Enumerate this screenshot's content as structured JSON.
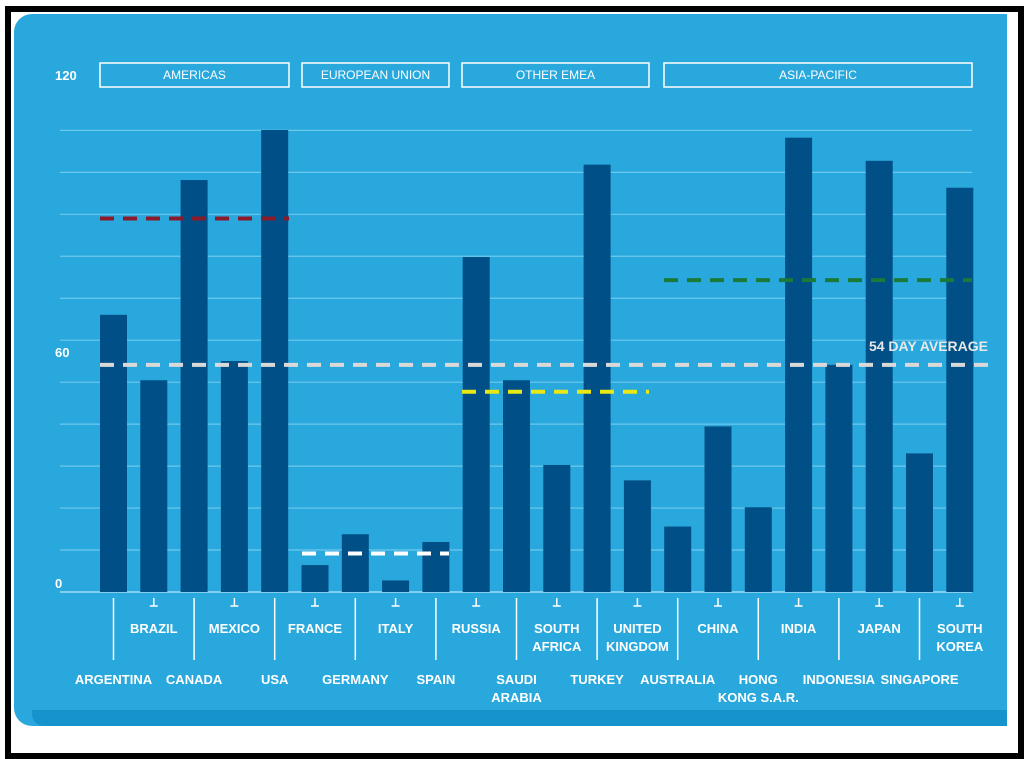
{
  "chart_data": {
    "type": "bar",
    "y_ticks": [
      "120",
      "60",
      "0"
    ],
    "ylim": [
      0,
      120
    ],
    "grid": true,
    "region_headers": [
      "AMERICAS",
      "EUROPEAN UNION",
      "OTHER EMEA",
      "ASIA-PACIFIC"
    ],
    "categories": [
      {
        "label": [
          "ARGENTINA"
        ],
        "value": 72,
        "region": 0
      },
      {
        "label": [
          "BRAZIL"
        ],
        "value": 55,
        "region": 0
      },
      {
        "label": [
          "CANADA"
        ],
        "value": 107,
        "region": 0
      },
      {
        "label": [
          "MEXICO"
        ],
        "value": 60,
        "region": 0
      },
      {
        "label": [
          "USA"
        ],
        "value": 120,
        "region": 0
      },
      {
        "label": [
          "FRANCE"
        ],
        "value": 7,
        "region": 1
      },
      {
        "label": [
          "GERMANY"
        ],
        "value": 15,
        "region": 1
      },
      {
        "label": [
          "ITALY"
        ],
        "value": 3,
        "region": 1
      },
      {
        "label": [
          "SPAIN"
        ],
        "value": 13,
        "region": 1
      },
      {
        "label": [
          "RUSSIA"
        ],
        "value": 87,
        "region": 2
      },
      {
        "label": [
          "SAUDI",
          "ARABIA"
        ],
        "value": 55,
        "region": 2
      },
      {
        "label": [
          "SOUTH",
          "AFRICA"
        ],
        "value": 33,
        "region": 2
      },
      {
        "label": [
          "TURKEY"
        ],
        "value": 111,
        "region": 2
      },
      {
        "label": [
          "UNITED",
          "KINGDOM"
        ],
        "value": 29,
        "region": 2
      },
      {
        "label": [
          "AUSTRALIA"
        ],
        "value": 17,
        "region": 3
      },
      {
        "label": [
          "CHINA"
        ],
        "value": 43,
        "region": 3
      },
      {
        "label": [
          "HONG",
          "KONG S.A.R."
        ],
        "value": 22,
        "region": 3
      },
      {
        "label": [
          "INDIA"
        ],
        "value": 118,
        "region": 3
      },
      {
        "label": [
          "INDONESIA"
        ],
        "value": 59,
        "region": 3
      },
      {
        "label": [
          "JAPAN"
        ],
        "value": 112,
        "region": 3
      },
      {
        "label": [
          "SINGAPORE"
        ],
        "value": 36,
        "region": 3
      },
      {
        "label": [
          "SOUTH",
          "KOREA"
        ],
        "value": 105,
        "region": 3
      }
    ],
    "average_line": {
      "label": "54 DAY AVERAGE",
      "value": 59,
      "color": "#d9d9d9"
    },
    "region_averages": [
      {
        "region": 0,
        "value": 97,
        "color": "#8b1a2b"
      },
      {
        "region": 1,
        "value": 10,
        "color": "#ffffff"
      },
      {
        "region": 2,
        "value": 52,
        "color": "#e8e817"
      },
      {
        "region": 3,
        "value": 81,
        "color": "#1a7a3a"
      }
    ],
    "colors": {
      "background": "#28a8dd",
      "bar": "#004f86",
      "grid": "#6ec8ec",
      "text": "#ffffff"
    }
  }
}
